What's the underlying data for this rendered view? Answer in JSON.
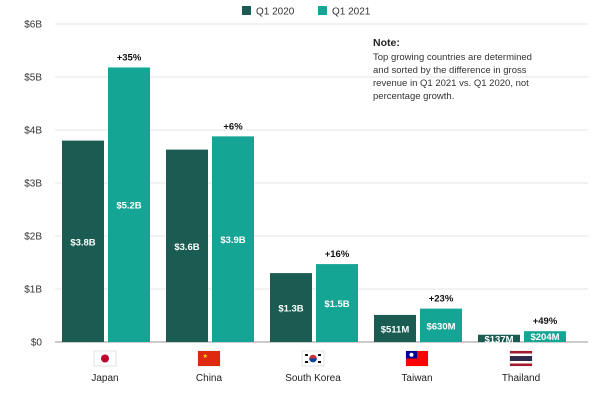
{
  "chart_data": {
    "type": "bar",
    "categories": [
      "Japan",
      "China",
      "South Korea",
      "Taiwan",
      "Thailand"
    ],
    "series": [
      {
        "name": "Q1 2020",
        "color": "#1a5c52",
        "values": [
          3.8,
          3.63,
          1.3,
          0.511,
          0.137
        ],
        "labels": [
          "$3.8B",
          "$3.6B",
          "$1.3B",
          "$511M",
          "$137M"
        ]
      },
      {
        "name": "Q1 2021",
        "color": "#15a595",
        "values": [
          5.18,
          3.88,
          1.47,
          0.63,
          0.204
        ],
        "labels": [
          "$5.2B",
          "$3.9B",
          "$1.5B",
          "$630M",
          "$204M"
        ]
      }
    ],
    "growth_labels": [
      "+35%",
      "+6%",
      "+16%",
      "+23%",
      "+49%"
    ],
    "ylim": [
      0,
      6
    ],
    "yticks": [
      0,
      1,
      2,
      3,
      4,
      5,
      6
    ],
    "ytick_labels": [
      "$0",
      "$1B",
      "$2B",
      "$3B",
      "$4B",
      "$5B",
      "$6B"
    ],
    "grid": true,
    "legend_position": "top-center",
    "flag_icons": [
      "japan-flag-icon",
      "china-flag-icon",
      "south-korea-flag-icon",
      "taiwan-flag-icon",
      "thailand-flag-icon"
    ]
  },
  "note": {
    "title": "Note:",
    "lines": [
      "Top growing countries are determined",
      "and sorted by the difference in gross",
      "revenue in Q1 2021 vs. Q1 2020, not",
      "percentage growth."
    ]
  }
}
